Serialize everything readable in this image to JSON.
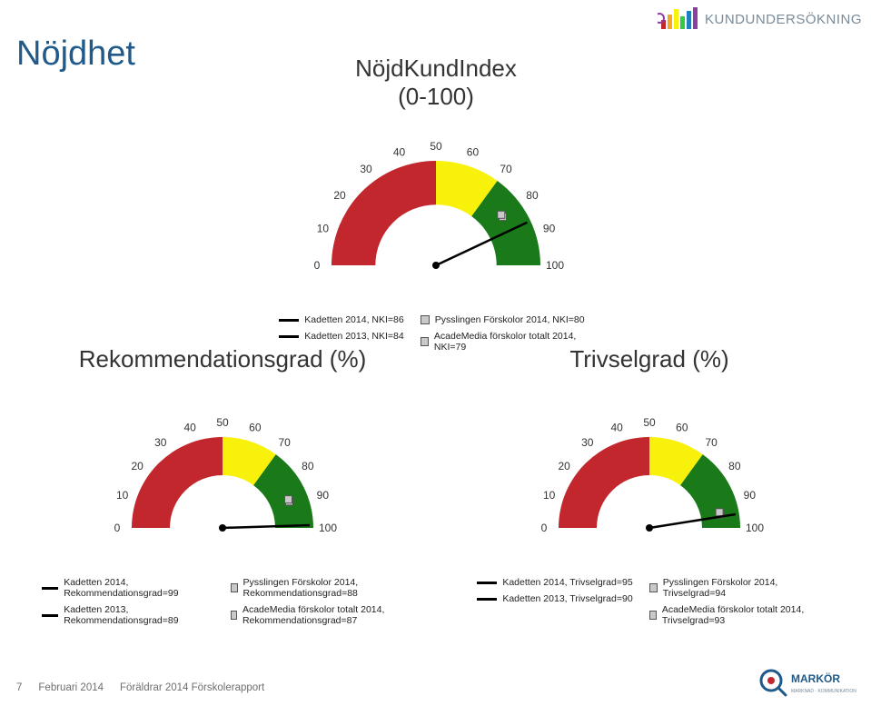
{
  "page": {
    "title": "Nöjdhet",
    "brand_text": "KUNDUNDERSÖKNING",
    "footer_page": "7",
    "footer_date": "Februari 2014",
    "footer_report": "Föräldrar 2014 Förskolerapport"
  },
  "colors": {
    "red": "#c1272d",
    "yellow": "#f7f10c",
    "green": "#1a7a1a",
    "needle": "#000000",
    "tick_mark": "#666",
    "title_blue": "#1f5a8a"
  },
  "brand_bars": [
    "#c1272d",
    "#f5a623",
    "#f7f10c",
    "#2ecc40",
    "#1f7fc1",
    "#8b3fa0"
  ],
  "gauges": {
    "main": {
      "title_l1": "NöjdKundIndex",
      "title_l2": "(0-100)",
      "ticks": [
        0,
        10,
        20,
        30,
        40,
        50,
        60,
        70,
        80,
        90,
        100
      ],
      "needle_value": 86,
      "markers": [
        80,
        79
      ],
      "legend": [
        {
          "type": "line",
          "text": "Kadetten 2014, NKI=86"
        },
        {
          "type": "box",
          "text": "Pysslingen Förskolor 2014, NKI=80"
        },
        {
          "type": "line",
          "text": "Kadetten 2013, NKI=84"
        },
        {
          "type": "box",
          "text": "AcadeMedia förskolor totalt 2014, NKI=79"
        }
      ]
    },
    "left": {
      "title": "Rekommendationsgrad (%)",
      "ticks": [
        0,
        10,
        20,
        30,
        40,
        50,
        60,
        70,
        80,
        90,
        100
      ],
      "needle_value": 99,
      "markers": [
        88,
        87
      ],
      "legend": [
        {
          "type": "line",
          "text": "Kadetten 2014, Rekommendationsgrad=99"
        },
        {
          "type": "box",
          "text": "Pysslingen Förskolor 2014, Rekommendationsgrad=88"
        },
        {
          "type": "line",
          "text": "Kadetten 2013, Rekommendationsgrad=89"
        },
        {
          "type": "box",
          "text": "AcadeMedia förskolor totalt 2014, Rekommendationsgrad=87"
        }
      ]
    },
    "right": {
      "title": "Trivselgrad (%)",
      "ticks": [
        0,
        10,
        20,
        30,
        40,
        50,
        60,
        70,
        80,
        90,
        100
      ],
      "needle_value": 95,
      "markers": [
        94,
        93
      ],
      "legend": [
        {
          "type": "line",
          "text": "Kadetten 2014, Trivselgrad=95"
        },
        {
          "type": "box",
          "text": "Pysslingen Förskolor 2014, Trivselgrad=94"
        },
        {
          "type": "line",
          "text": "Kadetten 2013, Trivselgrad=90"
        },
        {
          "type": "box",
          "text": "AcadeMedia förskolor totalt 2014, Trivselgrad=93"
        }
      ]
    }
  },
  "gauge_style": {
    "outer_r": 100,
    "inner_r": 58,
    "segments": [
      {
        "from": 0,
        "to": 50,
        "color": "#c1272d"
      },
      {
        "from": 50,
        "to": 70,
        "color": "#f7f10c"
      },
      {
        "from": 70,
        "to": 100,
        "color": "#1a7a1a"
      }
    ],
    "tick_font": 12,
    "title_font": 26
  }
}
